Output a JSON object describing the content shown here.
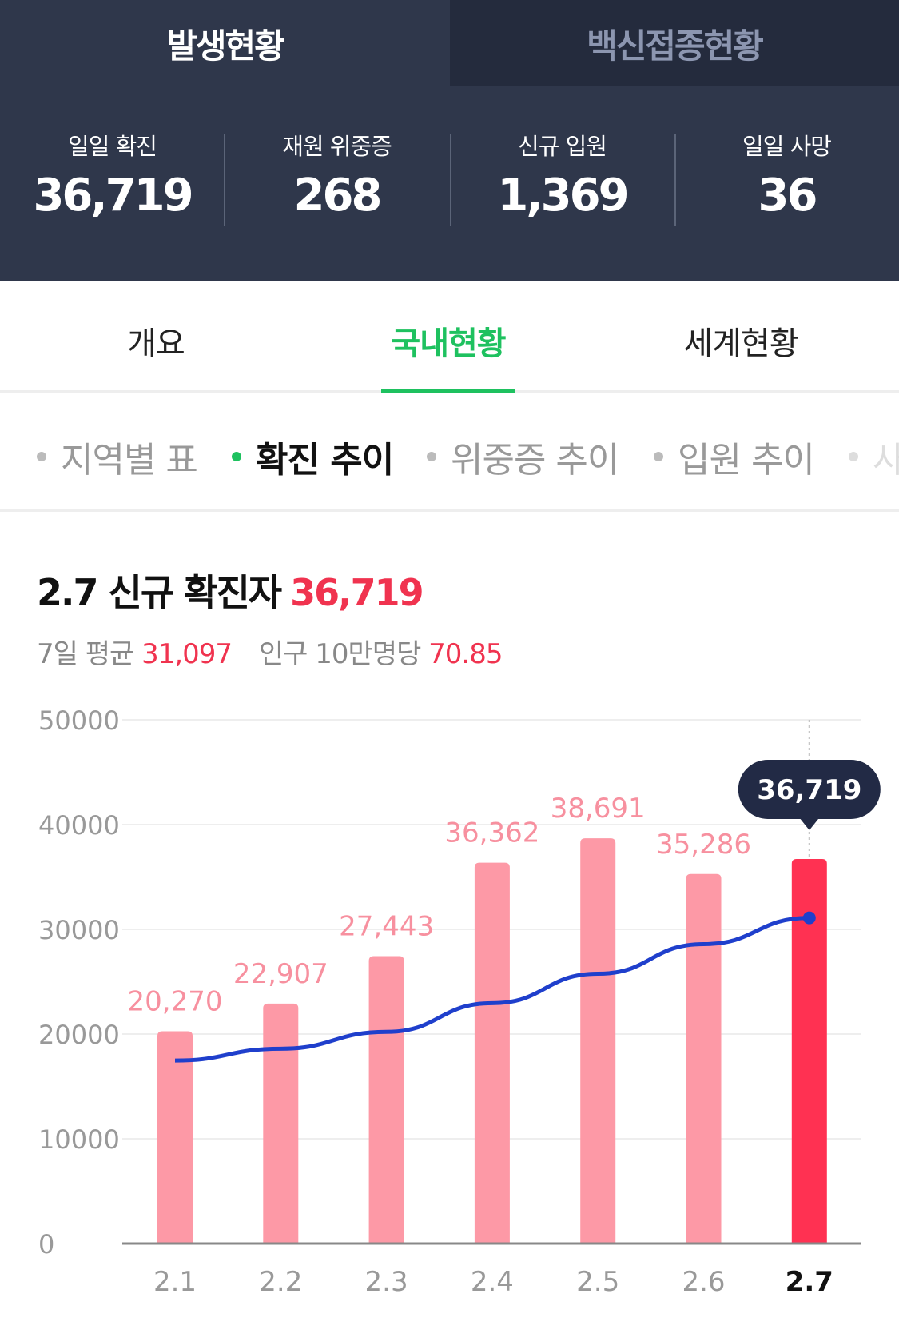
{
  "top_tabs": [
    {
      "label": "발생현황",
      "active": true
    },
    {
      "label": "백신접종현황",
      "active": false
    }
  ],
  "stats": [
    {
      "label": "일일 확진",
      "value": "36,719"
    },
    {
      "label": "재원 위중증",
      "value": "268"
    },
    {
      "label": "신규 입원",
      "value": "1,369"
    },
    {
      "label": "일일 사망",
      "value": "36"
    }
  ],
  "tabs": [
    {
      "label": "개요"
    },
    {
      "label": "국내현황",
      "active": true
    },
    {
      "label": "세계현황"
    }
  ],
  "subtabs": [
    {
      "label": "지역별 표"
    },
    {
      "label": "확진 추이",
      "active": true
    },
    {
      "label": "위중증 추이"
    },
    {
      "label": "입원 추이"
    },
    {
      "label": "사"
    }
  ],
  "summary": {
    "title": "2.7 신규 확진자",
    "value": "36,719",
    "avg_label": "7일 평균",
    "avg_value": "31,097",
    "per_label": "인구 10만명당",
    "per_value": "70.85"
  },
  "colors": {
    "accent": "#1ec15f",
    "bar": "#fd99a6",
    "bar_selected": "#ff3152",
    "avg_line": "#1f3fcc",
    "tooltip": "#222a45"
  },
  "chart_data": {
    "type": "bar",
    "categories": [
      "2.1",
      "2.2",
      "2.3",
      "2.4",
      "2.5",
      "2.6",
      "2.7"
    ],
    "values": [
      20270,
      22907,
      27443,
      36362,
      38691,
      35286,
      36719
    ],
    "value_labels": [
      "20,270",
      "22,907",
      "27,443",
      "36,362",
      "38,691",
      "35,286",
      "36,719"
    ],
    "line_series": {
      "type": "line",
      "values": [
        17470,
        18600,
        20210,
        22950,
        25760,
        28590,
        31097
      ]
    },
    "ylim": [
      0,
      50000
    ],
    "yticks": [
      "0",
      "10000",
      "20000",
      "30000",
      "40000",
      "50000"
    ],
    "grid": true,
    "selected_index": 6,
    "tooltip": "36,719"
  }
}
